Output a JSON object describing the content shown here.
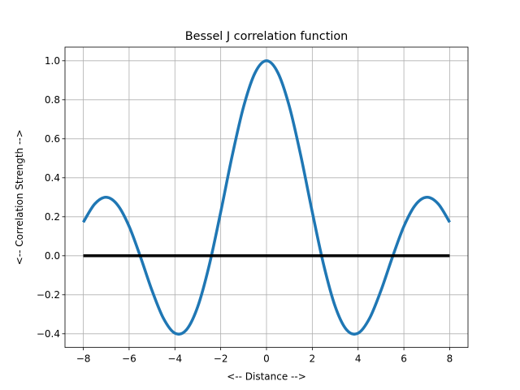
{
  "chart_data": {
    "type": "line",
    "title": "Bessel J correlation function",
    "xlabel": "<-- Distance -->",
    "ylabel": "<-- Correlation Strength -->",
    "xlim": [
      -8.8,
      8.8
    ],
    "ylim": [
      -0.47,
      1.07
    ],
    "xticks": [
      -8,
      -6,
      -4,
      -2,
      0,
      2,
      4,
      6,
      8
    ],
    "yticks": [
      -0.4,
      -0.2,
      0.0,
      0.2,
      0.4,
      0.6,
      0.8,
      1.0
    ],
    "grid": true,
    "series": [
      {
        "color": "#1f77b4",
        "x": [
          -8,
          -7.5,
          -7,
          -6.5,
          -6,
          -5.5,
          -5,
          -4.5,
          -4,
          -3.5,
          -3,
          -2.5,
          -2,
          -1.5,
          -1,
          -0.5,
          0,
          0.5,
          1,
          1.5,
          2,
          2.5,
          3,
          3.5,
          4,
          4.5,
          5,
          5.5,
          6,
          6.5,
          7,
          7.5,
          8
        ],
        "y": [
          0.172,
          0.266,
          0.3,
          0.26,
          0.151,
          -0.007,
          -0.178,
          -0.321,
          -0.397,
          -0.38,
          -0.26,
          -0.048,
          0.224,
          0.512,
          0.765,
          0.938,
          1.0,
          0.938,
          0.765,
          0.512,
          0.224,
          -0.048,
          -0.26,
          -0.38,
          -0.397,
          -0.321,
          -0.178,
          -0.007,
          0.151,
          0.26,
          0.3,
          0.266,
          0.172
        ]
      },
      {
        "color": "#000000",
        "x": [
          -8,
          8
        ],
        "y": [
          0,
          0
        ]
      }
    ]
  }
}
